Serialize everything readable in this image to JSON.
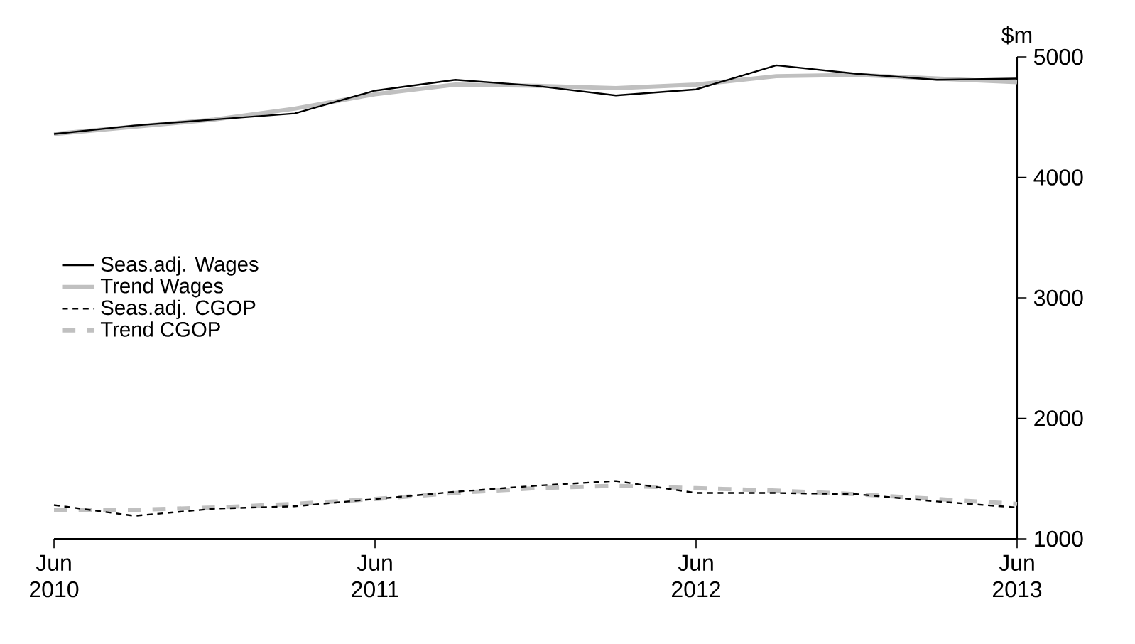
{
  "chart_data": {
    "type": "line",
    "ylabel": "$m",
    "x": [
      "2010-06",
      "2010-09",
      "2010-12",
      "2011-03",
      "2011-06",
      "2011-09",
      "2011-12",
      "2012-03",
      "2012-06",
      "2012-09",
      "2012-12",
      "2013-03",
      "2013-06"
    ],
    "series": [
      {
        "name": "Seas.adj. Wages",
        "color": "#000000",
        "line_style": "solid",
        "values": [
          4360,
          4430,
          4480,
          4530,
          4720,
          4810,
          4760,
          4680,
          4730,
          4930,
          4860,
          4810,
          4820
        ]
      },
      {
        "name": "Trend Wages",
        "color": "#c0c0c0",
        "line_style": "solid",
        "values": [
          4360,
          4420,
          4480,
          4570,
          4690,
          4770,
          4760,
          4740,
          4770,
          4840,
          4850,
          4820,
          4790
        ]
      },
      {
        "name": "Seas.adj. CGOP",
        "color": "#000000",
        "line_style": "dashed",
        "values": [
          1280,
          1190,
          1250,
          1270,
          1330,
          1390,
          1440,
          1480,
          1380,
          1380,
          1370,
          1310,
          1260
        ]
      },
      {
        "name": "Trend CGOP",
        "color": "#c0c0c0",
        "line_style": "dashed",
        "values": [
          1240,
          1240,
          1260,
          1290,
          1330,
          1380,
          1420,
          1440,
          1420,
          1400,
          1370,
          1330,
          1290
        ]
      }
    ],
    "xlim": [
      "2010-06",
      "2013-06"
    ],
    "xticks": [
      {
        "value": "2010-06",
        "label": "Jun 2010"
      },
      {
        "value": "2011-06",
        "label": "Jun 2011"
      },
      {
        "value": "2012-06",
        "label": "Jun 2012"
      },
      {
        "value": "2013-06",
        "label": "Jun 2013"
      }
    ],
    "ylim": [
      1000,
      5000
    ],
    "yticks": [
      1000,
      2000,
      3000,
      4000,
      5000
    ],
    "grid": false,
    "legend": "left",
    "marker": "none"
  }
}
